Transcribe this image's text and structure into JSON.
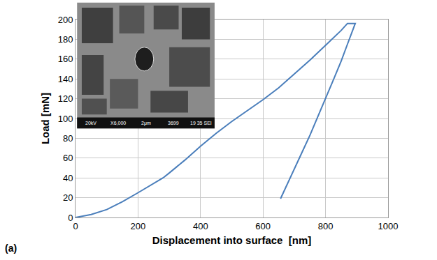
{
  "chart_data": {
    "type": "line",
    "x_label": "Displacement into surface  [nm]",
    "y_label": "Load [mN]",
    "annotations": [
      "(a)"
    ],
    "inset_labels": [
      "20kV",
      "X6,000",
      "2μm",
      "3699",
      "19 35 SEI"
    ],
    "series": [
      {
        "name": "Load",
        "color": "#4a7ebb",
        "x": [
          0,
          50,
          100,
          150,
          200,
          250,
          280,
          300,
          350,
          400,
          450,
          500,
          550,
          600,
          650,
          700,
          750,
          800,
          850,
          870,
          890,
          895,
          870,
          850,
          825,
          800,
          775,
          750,
          725,
          700,
          680,
          665,
          656
        ],
        "values": [
          0,
          3,
          8,
          16,
          25,
          34,
          40,
          45,
          58,
          72,
          85,
          97,
          108,
          119,
          131,
          145,
          159,
          174,
          189,
          196,
          196,
          196,
          175,
          158,
          139,
          120,
          101,
          83,
          66,
          49,
          35,
          25,
          19
        ]
      }
    ],
    "xlim": [
      0,
      1000
    ],
    "xticks": [
      0,
      200,
      400,
      600,
      800,
      1000
    ],
    "ylim": [
      0,
      200
    ],
    "yticks": [
      0,
      20,
      40,
      60,
      80,
      100,
      120,
      140,
      160,
      180,
      200
    ],
    "grid": true
  }
}
